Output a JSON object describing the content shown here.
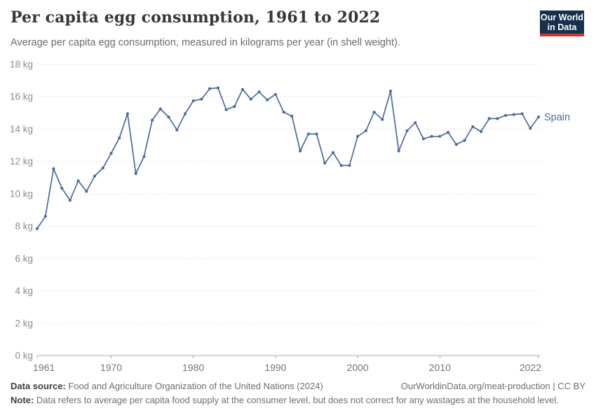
{
  "header": {
    "title": "Per capita egg consumption, 1961 to 2022",
    "subtitle": "Average per capita egg consumption, measured in kilograms per year (in shell weight)."
  },
  "logo": {
    "line1": "Our World",
    "line2": "in Data"
  },
  "colors": {
    "line": "#4c6a9c",
    "logo_bg": "#16304d",
    "logo_accent": "#d7342a",
    "gridline": "#dedede",
    "axis": "#a8a8a8",
    "ytick_label": "#8c8c8c",
    "xtick_label": "#757575"
  },
  "footer": {
    "source_label": "Data source:",
    "source_text": "Food and Agriculture Organization of the United Nations (2024)",
    "credit": "OurWorldinData.org/meat-production | CC BY",
    "note_label": "Note:",
    "note_text": "Data refers to average per capita food supply at the consumer level, but does not correct for any wastages at the household level."
  },
  "chart_data": {
    "type": "line",
    "title": "Per capita egg consumption, 1961 to 2022",
    "xlabel": "",
    "ylabel": "kg per year (in shell weight)",
    "ylim": [
      0,
      18
    ],
    "grid": "dashed-horizontal",
    "legend_position": "end-of-line-label",
    "yticks": {
      "values": [
        0,
        2,
        4,
        6,
        8,
        10,
        12,
        14,
        16,
        18
      ],
      "labels": [
        "0 kg",
        "2 kg",
        "4 kg",
        "6 kg",
        "8 kg",
        "10 kg",
        "12 kg",
        "14 kg",
        "16 kg",
        "18 kg"
      ]
    },
    "xticks": {
      "values": [
        1961,
        1970,
        1980,
        1990,
        2000,
        2010,
        2022
      ],
      "labels": [
        "1961",
        "1970",
        "1980",
        "1990",
        "2000",
        "2010",
        "2022"
      ]
    },
    "x": [
      1961,
      1962,
      1963,
      1964,
      1965,
      1966,
      1967,
      1968,
      1969,
      1970,
      1971,
      1972,
      1973,
      1974,
      1975,
      1976,
      1977,
      1978,
      1979,
      1980,
      1981,
      1982,
      1983,
      1984,
      1985,
      1986,
      1987,
      1988,
      1989,
      1990,
      1991,
      1992,
      1993,
      1994,
      1995,
      1996,
      1997,
      1998,
      1999,
      2000,
      2001,
      2002,
      2003,
      2004,
      2005,
      2006,
      2007,
      2008,
      2009,
      2010,
      2011,
      2012,
      2013,
      2014,
      2015,
      2016,
      2017,
      2018,
      2019,
      2020,
      2021,
      2022
    ],
    "series": [
      {
        "name": "Spain",
        "color": "#4c6a9c",
        "values": [
          7.85,
          8.6,
          11.55,
          10.35,
          9.6,
          10.8,
          10.15,
          11.1,
          11.6,
          12.5,
          13.45,
          14.95,
          11.25,
          12.3,
          14.55,
          15.25,
          14.75,
          13.95,
          14.95,
          15.75,
          15.85,
          16.5,
          16.55,
          15.2,
          15.4,
          16.45,
          15.85,
          16.3,
          15.8,
          16.15,
          15.05,
          14.8,
          12.65,
          13.7,
          13.7,
          11.9,
          12.55,
          11.75,
          11.75,
          13.55,
          13.9,
          15.05,
          14.6,
          16.35,
          12.65,
          13.9,
          14.4,
          13.4,
          13.55,
          13.55,
          13.8,
          13.05,
          13.3,
          14.15,
          13.85,
          14.65,
          14.65,
          14.85,
          14.9,
          14.95,
          14.05,
          14.75
        ]
      }
    ]
  }
}
